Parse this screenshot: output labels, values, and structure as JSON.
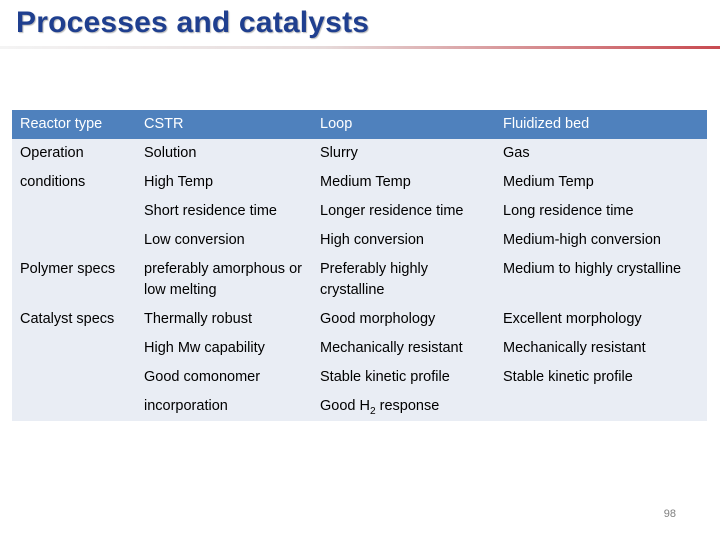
{
  "slide": {
    "title": "Processes and catalysts",
    "page_number": "98"
  },
  "colors": {
    "title": "#1f3f8f",
    "header_bg": "#4f81bd",
    "band_bg": "#e9edf4",
    "rule_accent": "#c84a50"
  },
  "table": {
    "header": [
      "Reactor type",
      "CSTR",
      "Loop",
      "Fluidized bed"
    ],
    "rows": [
      [
        "Operation",
        "Solution",
        "Slurry",
        "Gas"
      ],
      [
        "conditions",
        "High Temp",
        "Medium Temp",
        "Medium Temp"
      ],
      [
        "",
        "Short residence time",
        "Longer residence time",
        "Long residence time"
      ],
      [
        "",
        "Low conversion",
        "High conversion",
        "Medium-high conversion"
      ],
      [
        "Polymer specs",
        "preferably amorphous or low melting",
        "Preferably highly crystalline",
        "Medium to highly crystalline"
      ],
      [
        "Catalyst specs",
        "Thermally robust",
        "Good morphology",
        "Excellent morphology"
      ],
      [
        "",
        "High Mw capability",
        "Mechanically resistant",
        "Mechanically resistant"
      ],
      [
        "",
        "Good comonomer",
        "Stable kinetic profile",
        "Stable kinetic profile"
      ],
      [
        "",
        "incorporation",
        "Good H",
        ""
      ]
    ],
    "h2_subscript": "2",
    "h2_suffix": " response"
  }
}
